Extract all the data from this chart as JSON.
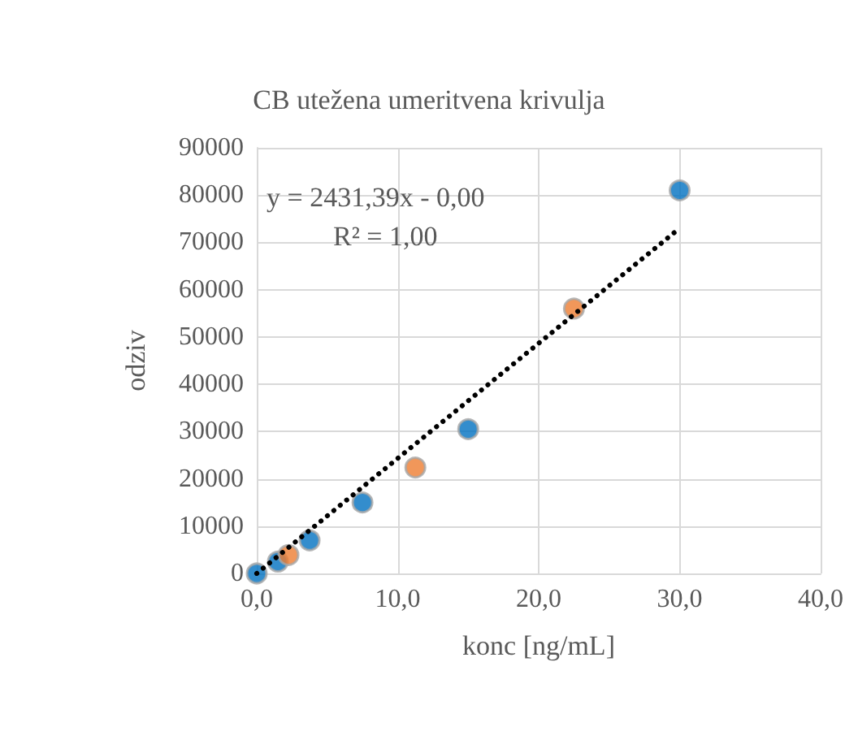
{
  "chart_data": {
    "type": "scatter",
    "title": "CB utežena umeritvena krivulja",
    "xlabel": "konc [ng/mL]",
    "ylabel": "odziv",
    "xlim": [
      0,
      40
    ],
    "xticks": [
      {
        "value": 0,
        "label": "0,0"
      },
      {
        "value": 10,
        "label": "10,0"
      },
      {
        "value": 20,
        "label": "20,0"
      },
      {
        "value": 30,
        "label": "30,0"
      },
      {
        "value": 40,
        "label": "40,0"
      }
    ],
    "ylim": [
      0,
      90000
    ],
    "yticks": [
      0,
      10000,
      20000,
      30000,
      40000,
      50000,
      60000,
      70000,
      80000,
      90000
    ],
    "grid": true,
    "marker": "circle",
    "series": [
      {
        "type": "line",
        "color": "#000000",
        "line_style": "dotted",
        "marker": "none",
        "x": [
          0,
          30
        ],
        "values": [
          0,
          73000
        ]
      },
      {
        "color": "#0070c0",
        "x": [
          0,
          1.5,
          3.75,
          7.5,
          15,
          30
        ],
        "values": [
          0,
          2500,
          7000,
          15000,
          30500,
          81000
        ]
      },
      {
        "color": "#ed7d31",
        "x": [
          2.25,
          11.25,
          22.5
        ],
        "values": [
          3900,
          22400,
          56000
        ]
      }
    ],
    "annotations": [
      "y = 2431,39x - 0,00",
      "R² = 1,00"
    ]
  }
}
